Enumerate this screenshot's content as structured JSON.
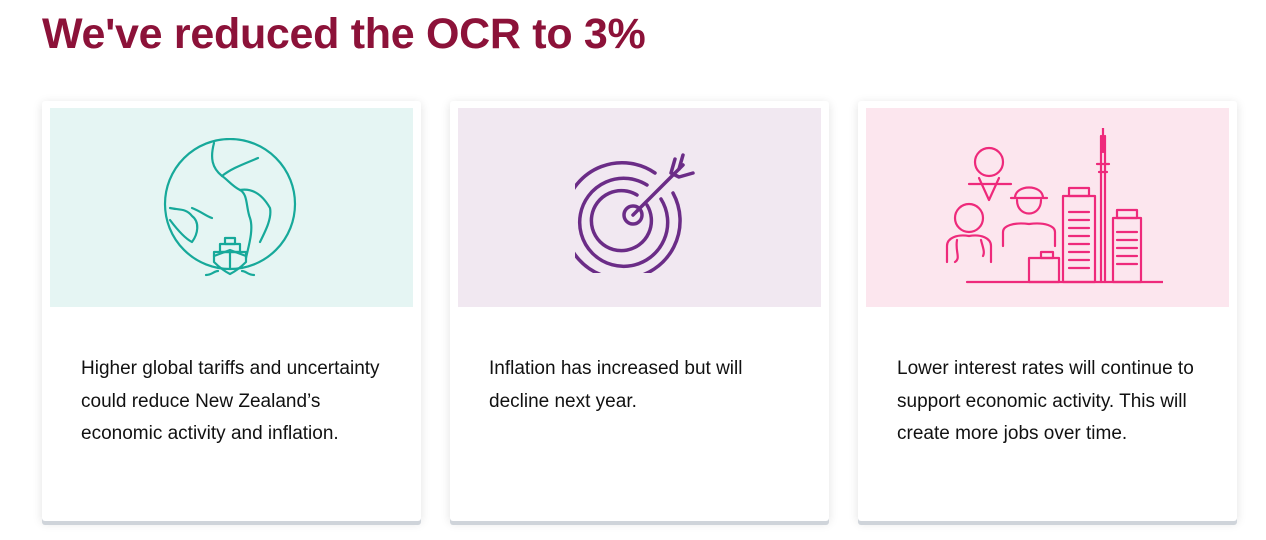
{
  "title": "We've reduced the OCR to 3%",
  "colors": {
    "title": "#8c1239",
    "teal": "#17a99a",
    "purple": "#6b2c87",
    "pink": "#ee2a7b"
  },
  "cards": [
    {
      "icon": "globe-ship-icon",
      "panel_color": "#e5f5f3",
      "text": "Higher global tariffs and uncertainty could reduce New Zealand’s economic activity and inflation."
    },
    {
      "icon": "target-arrow-icon",
      "panel_color": "#f1e8f1",
      "text": "Inflation has increased but will decline next year."
    },
    {
      "icon": "people-city-icon",
      "panel_color": "#fce6ee",
      "text": "Lower interest rates will continue to support economic activity. This will create more jobs over time."
    }
  ]
}
